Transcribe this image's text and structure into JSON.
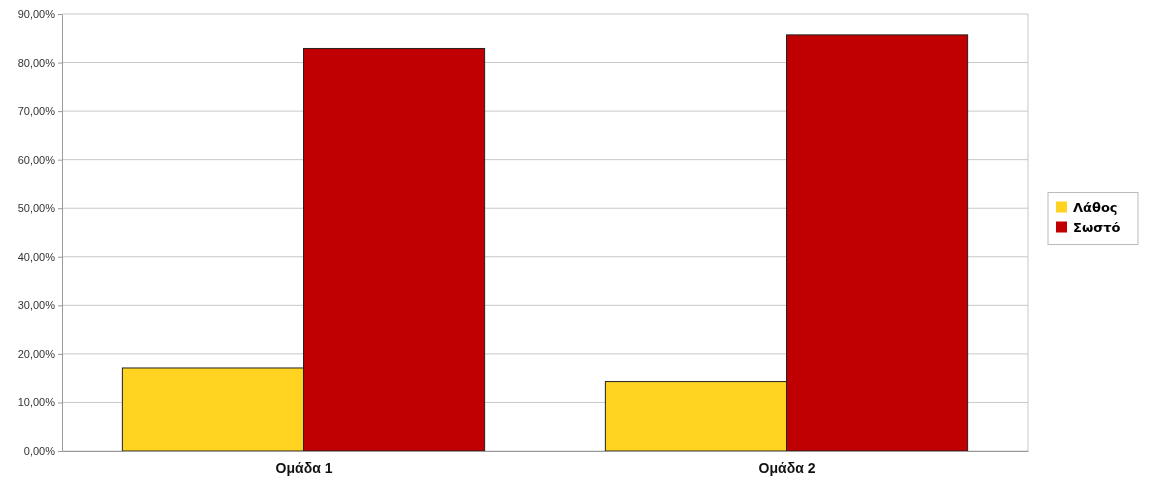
{
  "chart_data": {
    "type": "bar",
    "categories": [
      "Ομάδα 1",
      "Ομάδα 2"
    ],
    "series": [
      {
        "name": "Λάθος",
        "color": "#ffd320",
        "values": [
          17.1,
          14.3
        ]
      },
      {
        "name": "Σωστό",
        "color": "#c00000",
        "values": [
          82.9,
          85.7
        ]
      }
    ],
    "ylim": [
      0,
      90
    ],
    "yticks": [
      {
        "value": 0,
        "label": "0,00%"
      },
      {
        "value": 10,
        "label": "10,00%"
      },
      {
        "value": 20,
        "label": "20,00%"
      },
      {
        "value": 30,
        "label": "30,00%"
      },
      {
        "value": 40,
        "label": "40,00%"
      },
      {
        "value": 50,
        "label": "50,00%"
      },
      {
        "value": 60,
        "label": "60,00%"
      },
      {
        "value": 70,
        "label": "70,00%"
      },
      {
        "value": 80,
        "label": "80,00%"
      },
      {
        "value": 90,
        "label": "90,00%"
      }
    ],
    "grid": "y",
    "legend": "right"
  }
}
